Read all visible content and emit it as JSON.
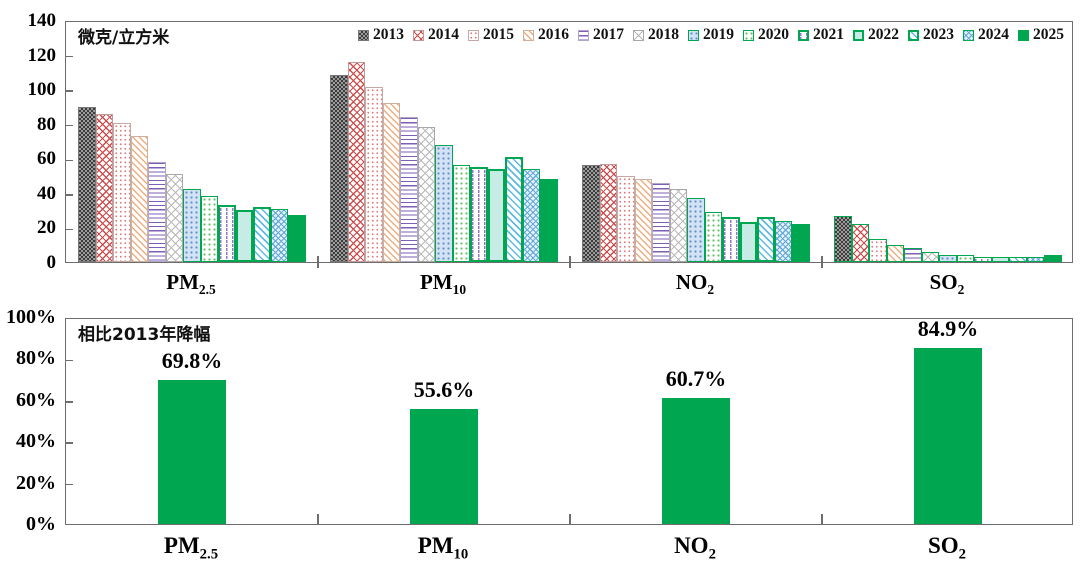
{
  "colors": {
    "green": "#00A650",
    "axis": "#6e6e6e",
    "text": "#111111"
  },
  "chart_data": [
    {
      "type": "bar",
      "title": "微克/立方米",
      "unit_label": "微克/立方米",
      "categories": [
        "PM2.5",
        "PM10",
        "NO2",
        "SO2"
      ],
      "y_tick_labels": [
        "140",
        "120",
        "100",
        "80",
        "60",
        "40",
        "20",
        "0"
      ],
      "ylim": [
        0,
        140
      ],
      "grid": false,
      "legend_position": "top-right-inside",
      "series": [
        {
          "name": "2013",
          "values": [
            89.5,
            108.1,
            56.0,
            26.5
          ]
        },
        {
          "name": "2014",
          "values": [
            85.9,
            115.8,
            56.7,
            21.8
          ]
        },
        {
          "name": "2015",
          "values": [
            80.6,
            101.5,
            50.0,
            13.5
          ]
        },
        {
          "name": "2016",
          "values": [
            73,
            92,
            48,
            10
          ]
        },
        {
          "name": "2017",
          "values": [
            58,
            84,
            46,
            8
          ]
        },
        {
          "name": "2018",
          "values": [
            51,
            78,
            42,
            6
          ]
        },
        {
          "name": "2019",
          "values": [
            42,
            68,
            37,
            4
          ]
        },
        {
          "name": "2020",
          "values": [
            38,
            56,
            29,
            4
          ]
        },
        {
          "name": "2021",
          "values": [
            33,
            55,
            26,
            3
          ]
        },
        {
          "name": "2022",
          "values": [
            30,
            54,
            23,
            3
          ]
        },
        {
          "name": "2023",
          "values": [
            32,
            61,
            26,
            3
          ]
        },
        {
          "name": "2024",
          "values": [
            30.5,
            54,
            24,
            3
          ]
        },
        {
          "name": "2025",
          "values": [
            27,
            48,
            22,
            4
          ]
        }
      ]
    },
    {
      "type": "bar",
      "title": "相比2013年降幅",
      "categories": [
        "PM2.5",
        "PM10",
        "NO2",
        "SO2"
      ],
      "y_tick_labels": [
        "100%",
        "80%",
        "60%",
        "40%",
        "20%",
        "0%"
      ],
      "ylim": [
        0,
        100
      ],
      "grid": false,
      "values": [
        69.8,
        55.6,
        60.7,
        84.9
      ],
      "value_labels": [
        "69.8%",
        "55.6%",
        "60.7%",
        "84.9%"
      ],
      "bar_color": "#00A650"
    }
  ]
}
